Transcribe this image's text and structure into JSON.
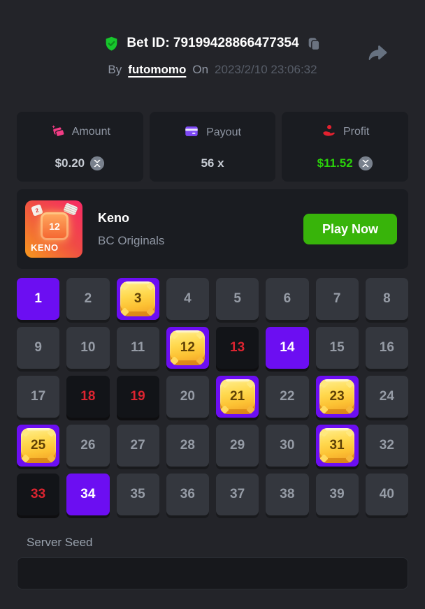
{
  "header": {
    "share_icon": "share-arrow-icon",
    "verified_icon": "shield-check-icon",
    "bet_id_text": "Bet ID: 79199428866477354",
    "copy_icon": "copy-icon",
    "by_label": "By",
    "username": "futomomo",
    "on_label": "On",
    "datetime": "2023/2/10 23:06:32"
  },
  "stats": [
    {
      "label": "Amount",
      "icon": "banknotes-icon",
      "value": "$0.20",
      "coin_icon": "xrp-coin-icon"
    },
    {
      "label": "Payout",
      "icon": "credit-card-icon",
      "value": "56 x",
      "coin_icon": null
    },
    {
      "label": "Profit",
      "icon": "hand-coin-icon",
      "value": "$11.52",
      "coin_icon": "xrp-coin-icon"
    }
  ],
  "game": {
    "title": "Keno",
    "provider": "BC Originals",
    "play_button_label": "Play Now",
    "tile_label": "KENO",
    "tile_gem_number": "12",
    "tile_chip_number": "2"
  },
  "keno": {
    "total_numbers": 40,
    "grid_columns": 8,
    "selected_not_hit": [
      1,
      14,
      34
    ],
    "hits": [
      3,
      12,
      21,
      23,
      25,
      31
    ],
    "drawn_misses": [
      13,
      18,
      19,
      33
    ]
  },
  "server_seed": {
    "label": "Server Seed",
    "value": ""
  },
  "colors": {
    "page_background": "#232429",
    "card_background": "#1a1c21",
    "accent_purple": "#6c0ef2",
    "gem_gold": "#fcc133",
    "miss_red": "#dc2430",
    "profit_green": "#2ad10a",
    "play_button_green": "#38b40a",
    "verified_green": "#17c62c",
    "payout_icon_purple": "#7e49f6",
    "amount_icon_pink": "#f23c85",
    "profit_icon_red": "#e3212f"
  }
}
